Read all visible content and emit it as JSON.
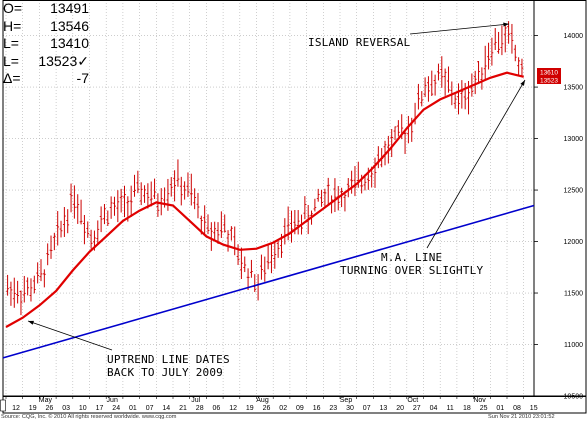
{
  "readout": {
    "rows": [
      {
        "label": "O=",
        "value": "13491"
      },
      {
        "label": "H=",
        "value": "13546"
      },
      {
        "label": "L=",
        "value": "13410"
      },
      {
        "label": "L=",
        "value": "13523✓"
      },
      {
        "label": "Δ=",
        "value": "-7"
      }
    ]
  },
  "annotations": {
    "island": "ISLAND REVERSAL",
    "ma": "M.A. LINE\nTURNING OVER SLIGHTLY",
    "uptrend": "UPTREND LINE DATES\nBACK TO JULY 2009"
  },
  "footer": {
    "source": "Source: CQG, Inc. © 2010 All rights reserved worldwide. www.cqg.com",
    "timestamp": "Sun Nov 21 2010 23:01:52"
  },
  "colors": {
    "bars": "#cc0000",
    "moving_average": "#e00000",
    "trendline": "#0000cc",
    "grid": "#b0b0b0",
    "last_price_tag": "#d00000"
  },
  "chart_data": {
    "type": "line",
    "ylim": [
      10500,
      14200
    ],
    "grid": true,
    "yticks": [
      10500,
      11000,
      11500,
      12000,
      12500,
      13000,
      13500,
      14000
    ],
    "ytick_labels": [
      "10500",
      "11000",
      "11500",
      "12000",
      "12500",
      "13000",
      "13500",
      "14000"
    ],
    "last_price_tags": [
      "13610",
      "13523"
    ],
    "x_day_labels": [
      "12",
      "19",
      "26",
      "03",
      "10",
      "17",
      "24",
      "01",
      "07",
      "14",
      "21",
      "28",
      "06",
      "12",
      "19",
      "26",
      "02",
      "09",
      "16",
      "23",
      "30",
      "07",
      "13",
      "20",
      "27",
      "04",
      "11",
      "18",
      "25",
      "01",
      "08",
      "15"
    ],
    "x_month_labels": [
      {
        "label": "May",
        "after_day_index": 2
      },
      {
        "label": "Jun",
        "after_day_index": 6
      },
      {
        "label": "Jul",
        "after_day_index": 11
      },
      {
        "label": "Aug",
        "after_day_index": 15
      },
      {
        "label": "Sep",
        "after_day_index": 20
      },
      {
        "label": "Oct",
        "after_day_index": 24
      },
      {
        "label": "Nov",
        "after_day_index": 28
      }
    ],
    "price_path": [
      {
        "day": "12",
        "close": 11550
      },
      {
        "day": "19",
        "close": 11500
      },
      {
        "day": "26",
        "close": 11650
      },
      {
        "day": "03",
        "close": 12050
      },
      {
        "day": "10",
        "close": 12450
      },
      {
        "day": "17",
        "close": 12050
      },
      {
        "day": "24",
        "close": 12300
      },
      {
        "day": "01",
        "close": 12350
      },
      {
        "day": "07",
        "close": 12500
      },
      {
        "day": "14",
        "close": 12400
      },
      {
        "day": "21",
        "close": 12600
      },
      {
        "day": "28",
        "close": 12450
      },
      {
        "day": "06",
        "close": 12100
      },
      {
        "day": "12",
        "close": 12150
      },
      {
        "day": "19",
        "close": 11800
      },
      {
        "day": "26",
        "close": 11600
      },
      {
        "day": "02",
        "close": 11950
      },
      {
        "day": "09",
        "close": 12150
      },
      {
        "day": "16",
        "close": 12250
      },
      {
        "day": "23",
        "close": 12450
      },
      {
        "day": "30",
        "close": 12450
      },
      {
        "day": "07",
        "close": 12550
      },
      {
        "day": "13",
        "close": 12750
      },
      {
        "day": "20",
        "close": 12950
      },
      {
        "day": "27",
        "close": 13100
      },
      {
        "day": "04",
        "close": 13500
      },
      {
        "day": "11",
        "close": 13600
      },
      {
        "day": "18",
        "close": 13350
      },
      {
        "day": "25",
        "close": 13550
      },
      {
        "day": "01",
        "close": 13900
      },
      {
        "day": "08",
        "close": 14000
      },
      {
        "day": "15",
        "close": 13550
      }
    ],
    "moving_average": [
      {
        "day": "12",
        "value": 11170
      },
      {
        "day": "19",
        "value": 11260
      },
      {
        "day": "26",
        "value": 11380
      },
      {
        "day": "03",
        "value": 11520
      },
      {
        "day": "10",
        "value": 11720
      },
      {
        "day": "17",
        "value": 11900
      },
      {
        "day": "24",
        "value": 12050
      },
      {
        "day": "01",
        "value": 12200
      },
      {
        "day": "07",
        "value": 12300
      },
      {
        "day": "14",
        "value": 12380
      },
      {
        "day": "21",
        "value": 12350
      },
      {
        "day": "28",
        "value": 12200
      },
      {
        "day": "06",
        "value": 12050
      },
      {
        "day": "12",
        "value": 11970
      },
      {
        "day": "19",
        "value": 11920
      },
      {
        "day": "26",
        "value": 11930
      },
      {
        "day": "02",
        "value": 11990
      },
      {
        "day": "09",
        "value": 12080
      },
      {
        "day": "16",
        "value": 12200
      },
      {
        "day": "23",
        "value": 12320
      },
      {
        "day": "30",
        "value": 12440
      },
      {
        "day": "07",
        "value": 12560
      },
      {
        "day": "13",
        "value": 12720
      },
      {
        "day": "20",
        "value": 12900
      },
      {
        "day": "27",
        "value": 13100
      },
      {
        "day": "04",
        "value": 13280
      },
      {
        "day": "11",
        "value": 13380
      },
      {
        "day": "18",
        "value": 13450
      },
      {
        "day": "25",
        "value": 13520
      },
      {
        "day": "01",
        "value": 13590
      },
      {
        "day": "08",
        "value": 13640
      },
      {
        "day": "15",
        "value": 13600
      }
    ],
    "uptrend_line": [
      {
        "day": "12",
        "value": 10870
      },
      {
        "day": "15",
        "value": 12350
      }
    ]
  }
}
